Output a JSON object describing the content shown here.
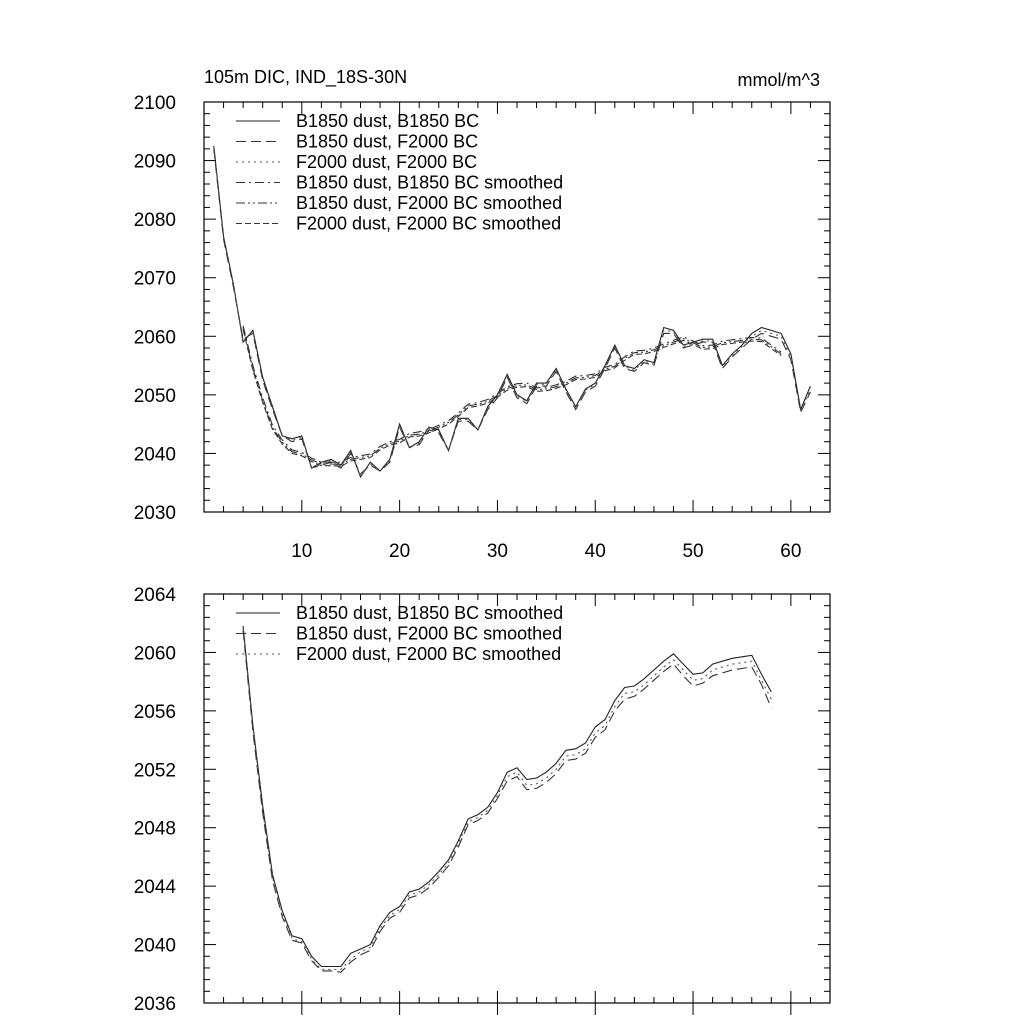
{
  "chart_data": [
    {
      "type": "line",
      "title": "105m DIC, IND_18S-30N",
      "units": "mmol/m^3",
      "xlim": [
        0,
        64
      ],
      "ylim": [
        2030,
        2100
      ],
      "xticks": [
        10,
        20,
        30,
        40,
        50,
        60
      ],
      "yticks": [
        2030,
        2040,
        2050,
        2060,
        2070,
        2080,
        2090,
        2100
      ],
      "grid": false,
      "legend_position": "top-left",
      "x": [
        1,
        2,
        3,
        4,
        5,
        6,
        7,
        8,
        9,
        10,
        11,
        12,
        13,
        14,
        15,
        16,
        17,
        18,
        19,
        20,
        21,
        22,
        23,
        24,
        25,
        26,
        27,
        28,
        29,
        30,
        31,
        32,
        33,
        34,
        35,
        36,
        37,
        38,
        39,
        40,
        41,
        42,
        43,
        44,
        45,
        46,
        47,
        48,
        49,
        50,
        51,
        52,
        53,
        54,
        55,
        56,
        57,
        58,
        59,
        60,
        61,
        62
      ],
      "series": [
        {
          "name": "B1850 dust, B1850 BC",
          "dash": "solid",
          "values": [
            2092.5,
            2077,
            2069,
            2059,
            2061,
            2053,
            2048,
            2043,
            2042.5,
            2043,
            2037.5,
            2038.5,
            2039,
            2038,
            2040.5,
            2036,
            2038.5,
            2037,
            2039,
            2045,
            2041,
            2042,
            2044.5,
            2044,
            2040.5,
            2046,
            2046,
            2044,
            2048,
            2050,
            2053.5,
            2050,
            2049,
            2052,
            2052,
            2054.5,
            2051,
            2048,
            2051,
            2052,
            2055,
            2058.5,
            2055,
            2054.5,
            2056,
            2055.5,
            2061.5,
            2061,
            2058.5,
            2059,
            2059.5,
            2059.5,
            2055,
            2057,
            2058.5,
            2060.5,
            2061.5,
            2061,
            2060.5,
            2057,
            2047.5,
            2051.5
          ]
        },
        {
          "name": "B1850 dust, F2000 BC",
          "dash": "long-dash",
          "values": [
            2092,
            2076.5,
            2068.5,
            2059.5,
            2060.5,
            2052.5,
            2047.5,
            2043,
            2042,
            2042.5,
            2037.5,
            2038,
            2038.5,
            2037.5,
            2040,
            2036.5,
            2038,
            2037,
            2038.5,
            2044.5,
            2041,
            2041.5,
            2044,
            2043.5,
            2040.5,
            2045.5,
            2045.5,
            2044,
            2047.5,
            2049.5,
            2053,
            2049.5,
            2048.5,
            2051.5,
            2051.5,
            2054,
            2050.5,
            2047.5,
            2050.5,
            2051.5,
            2054.5,
            2058,
            2054.5,
            2054,
            2055.5,
            2055,
            2060.5,
            2060.5,
            2058,
            2058.5,
            2059,
            2059,
            2054.5,
            2056.5,
            2058,
            2059.5,
            2060.5,
            2060,
            2059.5,
            2056,
            2047,
            2050.5
          ]
        },
        {
          "name": "F2000 dust, F2000 BC",
          "dash": "dotted",
          "values": [
            2092.2,
            2076.8,
            2068.8,
            2059.2,
            2060.8,
            2052.8,
            2047.8,
            2043,
            2042.2,
            2042.8,
            2037.5,
            2038.2,
            2038.8,
            2037.8,
            2040.2,
            2036.2,
            2038.2,
            2037,
            2038.8,
            2044.8,
            2041,
            2041.8,
            2044.2,
            2043.8,
            2040.5,
            2045.8,
            2045.8,
            2044,
            2047.8,
            2049.8,
            2053.2,
            2049.8,
            2048.8,
            2051.8,
            2051.8,
            2054.2,
            2050.8,
            2047.8,
            2050.8,
            2051.8,
            2054.8,
            2058.2,
            2054.8,
            2054.2,
            2055.8,
            2055.2,
            2061,
            2060.8,
            2058.2,
            2058.8,
            2059.2,
            2059.2,
            2054.8,
            2056.8,
            2058.2,
            2060,
            2061,
            2060.5,
            2060,
            2056.5,
            2047.2,
            2051
          ]
        },
        {
          "name": "B1850 dust, B1850 BC smoothed",
          "dash": "dash-dot",
          "values": [
            null,
            null,
            null,
            2061.8,
            2055,
            2049.5,
            2044.8,
            2042.3,
            2040.6,
            2040.2,
            2039.2,
            2038.5,
            2038.5,
            2038.5,
            2039.3,
            2039.6,
            2039.9,
            2041.2,
            2042,
            2042.4,
            2043.4,
            2043.7,
            2044.1,
            2044.8,
            2045.6,
            2046.9,
            2048.4,
            2048.7,
            2049.2,
            2050.2,
            2051.4,
            2051.9,
            2052,
            2051.2,
            2051.3,
            2051.7,
            2052.3,
            2053.2,
            2053.3,
            2053.6,
            2054.7,
            2055.2,
            2056.5,
            2057.5,
            2057.6,
            2058,
            2058.7,
            2059.3,
            2059.9,
            2059.2,
            2058.4,
            2058.5,
            2059.2,
            2059.4,
            2059.6,
            2059.8,
            2059.7,
            2058.5,
            2057.3,
            null,
            null,
            null
          ]
        },
        {
          "name": "B1850 dust, F2000 BC smoothed",
          "dash": "dash-dot-dot",
          "values": [
            null,
            null,
            null,
            2061.5,
            2054.5,
            2049,
            2044.4,
            2041.9,
            2040.3,
            2039.9,
            2038.9,
            2038.2,
            2038.2,
            2038.1,
            2039,
            2039.3,
            2039.6,
            2040.9,
            2041.7,
            2042.1,
            2043.1,
            2043.3,
            2043.8,
            2044.5,
            2045.3,
            2046.6,
            2048.1,
            2048.4,
            2048.9,
            2049.9,
            2051.1,
            2051.6,
            2051.7,
            2050.9,
            2051,
            2051.4,
            2052,
            2052.9,
            2053,
            2053.3,
            2054.4,
            2054.9,
            2056.2,
            2057.2,
            2057.3,
            2057.7,
            2058.4,
            2059,
            2059.6,
            2058.9,
            2058.1,
            2058.2,
            2058.9,
            2059.1,
            2059.3,
            2059.5,
            2059.4,
            2058.2,
            2057,
            null,
            null,
            null
          ]
        },
        {
          "name": "F2000 dust, F2000 BC smoothed",
          "dash": "dashed",
          "values": [
            null,
            null,
            null,
            2061.2,
            2054.2,
            2048.7,
            2044.1,
            2041.6,
            2040,
            2039.6,
            2038.6,
            2037.9,
            2037.9,
            2037.8,
            2038.7,
            2039,
            2039.3,
            2040.6,
            2041.4,
            2041.8,
            2042.8,
            2043,
            2043.5,
            2044.2,
            2045,
            2046.3,
            2047.8,
            2048.1,
            2048.6,
            2049.6,
            2050.8,
            2051.3,
            2051.4,
            2050.6,
            2050.7,
            2051.1,
            2051.7,
            2052.6,
            2052.7,
            2053,
            2054.1,
            2054.6,
            2055.9,
            2056.9,
            2057,
            2057.4,
            2058.1,
            2058.7,
            2059.3,
            2058.6,
            2057.8,
            2057.9,
            2058.6,
            2058.8,
            2059,
            2059.2,
            2059.1,
            2057.9,
            2056.7,
            null,
            null,
            null
          ]
        }
      ]
    },
    {
      "type": "line",
      "xlim": [
        0,
        64
      ],
      "ylim": [
        2036,
        2064
      ],
      "xticks": [
        10,
        20,
        30,
        40,
        50,
        60
      ],
      "yticks": [
        2036,
        2040,
        2044,
        2048,
        2052,
        2056,
        2060,
        2064
      ],
      "grid": false,
      "legend_position": "top-left",
      "x": [
        4,
        5,
        6,
        7,
        8,
        9,
        10,
        11,
        12,
        13,
        14,
        15,
        16,
        17,
        18,
        19,
        20,
        21,
        22,
        23,
        24,
        25,
        26,
        27,
        28,
        29,
        30,
        31,
        32,
        33,
        34,
        35,
        36,
        37,
        38,
        39,
        40,
        41,
        42,
        43,
        44,
        45,
        46,
        47,
        48,
        49,
        50,
        51,
        52,
        53,
        54,
        55,
        56,
        57,
        58,
        59,
        60
      ],
      "series": [
        {
          "name": "B1850 dust, B1850 BC smoothed",
          "dash": "solid",
          "values": [
            2061.8,
            2055,
            2049.5,
            2044.8,
            2042.3,
            2040.6,
            2040.4,
            2039.2,
            2038.5,
            2038.5,
            2038.5,
            2039.4,
            2039.7,
            2040,
            2041.3,
            2042.2,
            2042.6,
            2043.6,
            2043.8,
            2044.3,
            2045,
            2045.8,
            2047.1,
            2048.6,
            2048.9,
            2049.4,
            2050.4,
            2051.8,
            2052.1,
            2051.3,
            2051.4,
            2051.8,
            2052.4,
            2053.3,
            2053.4,
            2053.8,
            2054.9,
            2055.4,
            2056.7,
            2057.6,
            2057.7,
            2058.2,
            2058.8,
            2059.4,
            2059.9,
            2059.2,
            2058.5,
            2058.6,
            2059.2,
            2059.4,
            2059.6,
            2059.7,
            2059.8,
            2058.5,
            2057.3,
            null,
            null
          ],
          "values_note": ""
        },
        {
          "name": "B1850 dust, F2000 BC smoothed",
          "dash": "long-dash",
          "values": [
            2061.5,
            2054.6,
            2049,
            2044.4,
            2041.9,
            2040.3,
            2040.1,
            2038.9,
            2038.2,
            2038.2,
            2038.1,
            2038.8,
            2039.3,
            2039.6,
            2040.9,
            2041.8,
            2042.2,
            2043.2,
            2043.4,
            2043.9,
            2044.6,
            2045.4,
            2046.7,
            2048.2,
            2048.5,
            2049,
            2050,
            2051.2,
            2051.5,
            2050.6,
            2050.7,
            2051.1,
            2051.7,
            2052.6,
            2052.7,
            2053.1,
            2054.2,
            2054.7,
            2056,
            2056.8,
            2057,
            2057.5,
            2058.1,
            2058.7,
            2059.2,
            2058.4,
            2057.7,
            2057.9,
            2058.4,
            2058.6,
            2058.8,
            2058.9,
            2059,
            2057.8,
            2056.2,
            null,
            null
          ]
        },
        {
          "name": "F2000 dust, F2000 BC smoothed",
          "dash": "dotted",
          "values": [
            2061.6,
            2054.8,
            2049.2,
            2044.6,
            2042.1,
            2040.4,
            2040.2,
            2039,
            2038.3,
            2038.3,
            2038.3,
            2039,
            2039.5,
            2039.8,
            2041.1,
            2042,
            2042.4,
            2043.4,
            2043.6,
            2044.1,
            2044.8,
            2045.6,
            2046.9,
            2048.4,
            2048.7,
            2049.2,
            2050.2,
            2051.5,
            2051.8,
            2050.9,
            2051,
            2051.4,
            2052,
            2052.9,
            2053,
            2053.4,
            2054.5,
            2055,
            2056.3,
            2057.2,
            2057.3,
            2057.8,
            2058.4,
            2059,
            2059.5,
            2058.8,
            2058.1,
            2058.2,
            2058.8,
            2059,
            2059.2,
            2059.3,
            2059.4,
            2058.1,
            2056.8,
            null,
            null
          ]
        }
      ]
    }
  ]
}
